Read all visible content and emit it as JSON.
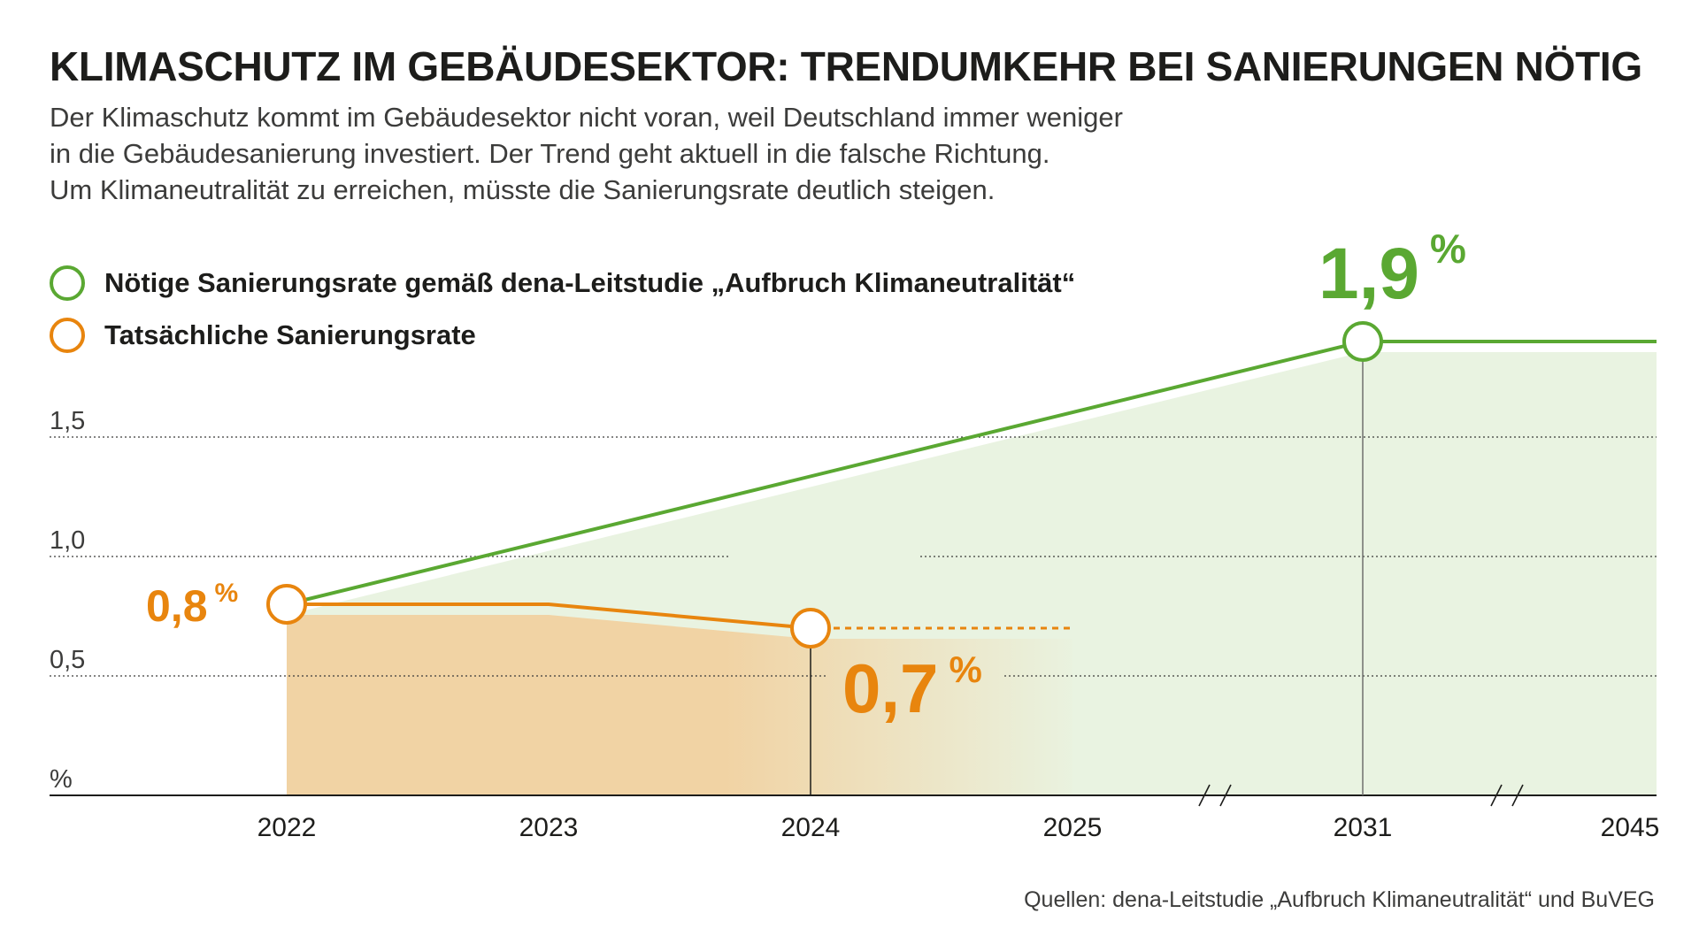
{
  "header": {
    "title": "KLIMASCHUTZ IM GEBÄUDESEKTOR: TRENDUMKEHR BEI SANIERUNGEN NÖTIG",
    "subtitle_lines": [
      "Der Klimaschutz kommt im Gebäudesektor nicht voran, weil Deutschland immer weniger",
      "in die Gebäudesanierung investiert. Der Trend geht aktuell in die falsche Richtung.",
      "Um Klimaneutralität zu erreichen, müsste die Sanierungsrate deutlich steigen."
    ]
  },
  "legend": [
    {
      "label": "Nötige Sanierungsrate gemäß dena-Leitstudie „Aufbruch Klimaneutralität“",
      "color": "#5aa832"
    },
    {
      "label": "Tatsächliche Sanierungsrate",
      "color": "#e8850e"
    }
  ],
  "chart_data": {
    "type": "line",
    "x": [
      "2022",
      "2023",
      "2024",
      "2025",
      "2031",
      "2045"
    ],
    "ylabel": "%",
    "yticks": [
      "%",
      "0,5",
      "1,0",
      "1,5"
    ],
    "ylim": [
      0,
      2.0
    ],
    "x_axis_breaks": [
      "2025–2031",
      "2031–2045"
    ],
    "series": [
      {
        "name": "Nötige Sanierungsrate gemäß dena-Leitstudie „Aufbruch Klimaneutralität“",
        "color": "#5aa832",
        "fill": "#e9f3e1",
        "points": [
          [
            "2022",
            0.8
          ],
          [
            "2031",
            1.9
          ],
          [
            "2045",
            1.9
          ]
        ],
        "markers": [
          "2022",
          "2031"
        ]
      },
      {
        "name": "Tatsächliche Sanierungsrate",
        "color": "#e8850e",
        "fill": "#f1d3a4",
        "points": [
          [
            "2022",
            0.8
          ],
          [
            "2023",
            0.8
          ],
          [
            "2024",
            0.7
          ]
        ],
        "markers": [
          "2022",
          "2024"
        ],
        "projection": [
          [
            "2024",
            0.7
          ],
          [
            "2025",
            0.7
          ]
        ]
      }
    ],
    "annotations": [
      {
        "x": "2022",
        "value": "0,8",
        "unit": "%",
        "color": "#e8850e"
      },
      {
        "x": "2024",
        "value": "0,7",
        "unit": "%",
        "color": "#e8850e"
      },
      {
        "x": "2031",
        "value": "1,9",
        "unit": "%",
        "color": "#5aa832"
      }
    ],
    "grid": "dotted horizontal"
  },
  "footer": {
    "source": "Quellen: dena-Leitstudie „Aufbruch Klimaneutralität“ und BuVEG"
  }
}
